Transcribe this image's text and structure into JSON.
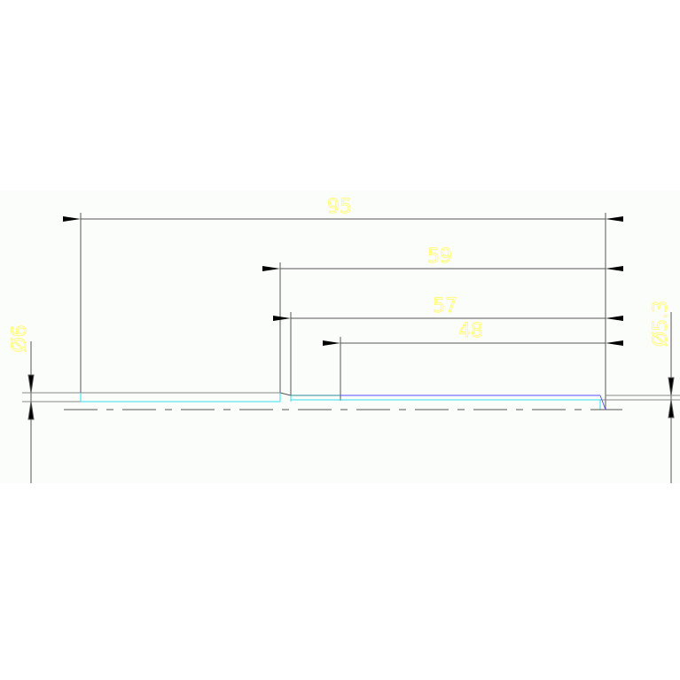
{
  "drawing": {
    "colors": {
      "background": "#fbfdfb",
      "dimension_line": "#555555",
      "dimension_text": "#ffff66",
      "outline_cyan": "#33e0f0",
      "outline_blue": "#5050ff",
      "centerline": "#555555"
    },
    "dimensions": {
      "length_overall": "95",
      "length_59": "59",
      "length_57": "57",
      "length_48": "48",
      "diameter_left": "Ø6",
      "diameter_right": "Ø5.3"
    }
  }
}
